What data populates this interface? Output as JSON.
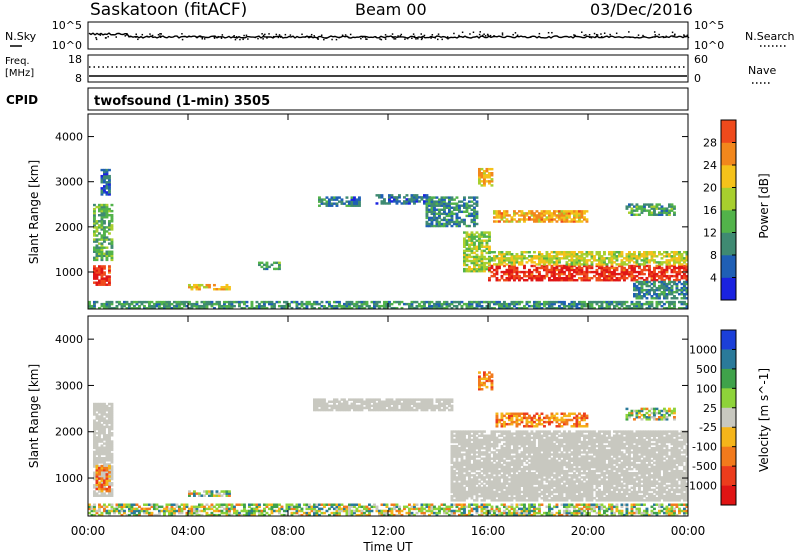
{
  "header": {
    "site": "Saskatoon (fitACF)",
    "beam": "Beam 00",
    "date": "03/Dec/2016"
  },
  "strip_labels": {
    "n_sky": "N.Sky",
    "n_search": "N.Search",
    "freq": "Freq.",
    "freq_unit": "[MHz]",
    "nave": "Nave",
    "cpid": "CPID",
    "cpid_value": "twofsound (1-min) 3505"
  },
  "strip_ticks": {
    "noise_left": [
      "10^5",
      "10^0"
    ],
    "noise_right": [
      "10^5",
      "10^0"
    ],
    "freq_left": [
      "18",
      "8"
    ],
    "freq_right": [
      "60",
      "0"
    ]
  },
  "x_axis": {
    "label": "Time UT",
    "ticks": [
      "00:00",
      "04:00",
      "08:00",
      "12:00",
      "16:00",
      "20:00",
      "00:00"
    ]
  },
  "colors": {
    "power_scale": [
      "#1a22e0",
      "#1f5fb5",
      "#3f8a72",
      "#52b34a",
      "#a8cf2e",
      "#f5c21a",
      "#f2871c",
      "#ef4a1c",
      "#e01616"
    ],
    "velocity_scale": [
      "#1b3fd8",
      "#2a7a9a",
      "#3fa24a",
      "#8ed33a",
      "#c8c8c0",
      "#f5b51a",
      "#f27a1c",
      "#ec3c1c",
      "#e01414"
    ],
    "ground_scatter": "#c8c8c0"
  },
  "chart_data": [
    {
      "type": "heatmap",
      "title": "",
      "xlabel": "",
      "ylabel": "Slant Range [km]",
      "xlim": [
        0,
        24
      ],
      "ylim": [
        180,
        4500
      ],
      "yticks": [
        "1000",
        "2000",
        "3000",
        "4000"
      ],
      "colorbar": {
        "label": "Power [dB]",
        "ticks": [
          "4",
          "8",
          "12",
          "16",
          "20",
          "24",
          "28"
        ],
        "range": [
          0,
          30
        ]
      },
      "regions": [
        {
          "t0": 0.2,
          "t1": 0.8,
          "r0": 700,
          "r1": 1150,
          "value": 27
        },
        {
          "t0": 0.2,
          "t1": 0.9,
          "r0": 1250,
          "r1": 2500,
          "value": 11
        },
        {
          "t0": 0.5,
          "t1": 0.8,
          "r0": 2700,
          "r1": 3250,
          "value": 6
        },
        {
          "t0": 4.0,
          "t1": 5.6,
          "r0": 600,
          "r1": 720,
          "value": 18
        },
        {
          "t0": 6.8,
          "t1": 7.6,
          "r0": 1050,
          "r1": 1200,
          "value": 10
        },
        {
          "t0": 9.2,
          "t1": 10.8,
          "r0": 2450,
          "r1": 2650,
          "value": 7
        },
        {
          "t0": 11.5,
          "t1": 13.6,
          "r0": 2500,
          "r1": 2700,
          "value": 6
        },
        {
          "t0": 13.5,
          "t1": 15.5,
          "r0": 2000,
          "r1": 2650,
          "value": 8
        },
        {
          "t0": 15.0,
          "t1": 16.0,
          "r0": 1000,
          "r1": 1900,
          "value": 14
        },
        {
          "t0": 16.0,
          "t1": 24.0,
          "r0": 800,
          "r1": 1150,
          "value": 27
        },
        {
          "t0": 16.0,
          "t1": 24.0,
          "r0": 1150,
          "r1": 1450,
          "value": 16
        },
        {
          "t0": 16.2,
          "t1": 20.0,
          "r0": 2100,
          "r1": 2350,
          "value": 20
        },
        {
          "t0": 15.6,
          "t1": 16.2,
          "r0": 2900,
          "r1": 3300,
          "value": 19
        },
        {
          "t0": 21.5,
          "t1": 23.5,
          "r0": 2250,
          "r1": 2500,
          "value": 10
        },
        {
          "t0": 21.8,
          "t1": 24.0,
          "r0": 400,
          "r1": 800,
          "value": 8
        },
        {
          "t0": 0.0,
          "t1": 24.0,
          "r0": 180,
          "r1": 330,
          "value": 9
        }
      ]
    },
    {
      "type": "heatmap",
      "title": "",
      "xlabel": "Time UT",
      "ylabel": "Slant Range [km]",
      "xlim": [
        0,
        24
      ],
      "ylim": [
        180,
        4500
      ],
      "yticks": [
        "1000",
        "2000",
        "3000",
        "4000"
      ],
      "colorbar": {
        "label": "Velocity [m s^-1]",
        "ticks": [
          "1000",
          "500",
          "100",
          "25",
          "-25",
          "-100",
          "-500",
          "-1000"
        ]
      },
      "regions": [
        {
          "t0": 0.2,
          "t1": 0.9,
          "r0": 600,
          "r1": 2600,
          "class": "ground"
        },
        {
          "t0": 0.3,
          "t1": 0.8,
          "r0": 700,
          "r1": 1250,
          "class": "neg"
        },
        {
          "t0": 4.0,
          "t1": 5.6,
          "r0": 600,
          "r1": 720,
          "class": "mixed"
        },
        {
          "t0": 9.0,
          "t1": 14.5,
          "r0": 2450,
          "r1": 2700,
          "class": "ground"
        },
        {
          "t0": 14.5,
          "t1": 24.0,
          "r0": 500,
          "r1": 2000,
          "class": "ground"
        },
        {
          "t0": 15.6,
          "t1": 16.2,
          "r0": 2900,
          "r1": 3300,
          "class": "neg"
        },
        {
          "t0": 16.3,
          "t1": 20.0,
          "r0": 2100,
          "r1": 2400,
          "class": "neg"
        },
        {
          "t0": 21.5,
          "t1": 23.5,
          "r0": 2250,
          "r1": 2500,
          "class": "mixed"
        },
        {
          "t0": 0.0,
          "t1": 24.0,
          "r0": 180,
          "r1": 420,
          "class": "mixed"
        }
      ]
    }
  ]
}
